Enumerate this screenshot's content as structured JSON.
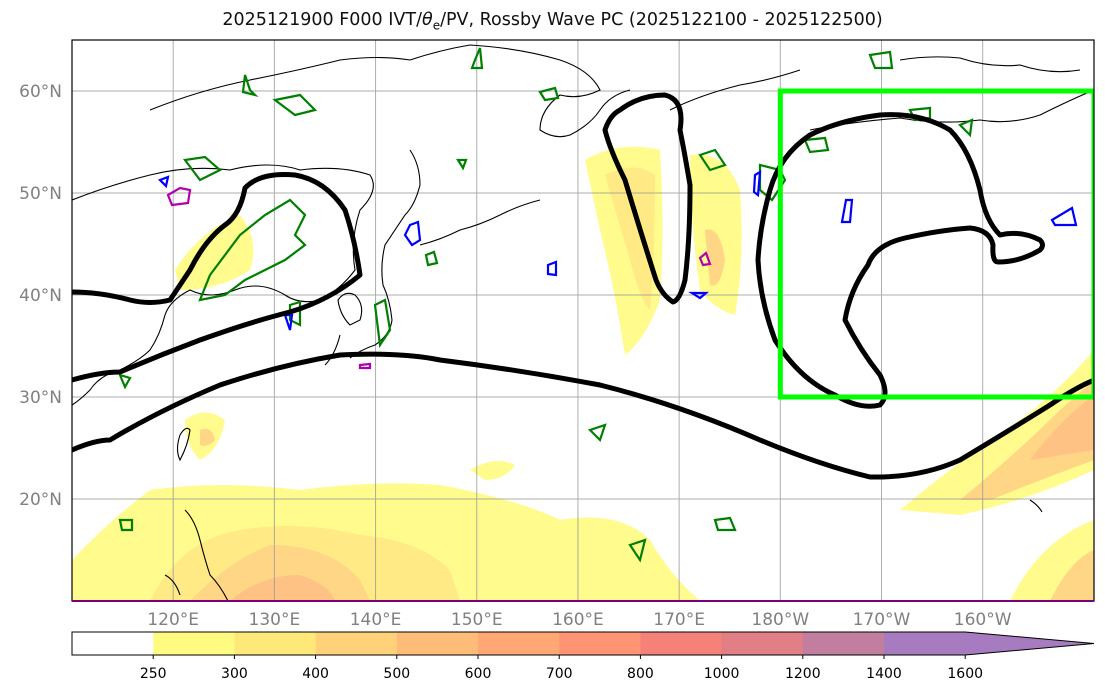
{
  "title": {
    "prefix": "2025121900 F000 IVT/",
    "theta": "θ",
    "theta_sub": "e",
    "suffix": "/PV, Rossby Wave PC (2025122100 - 2025122500)"
  },
  "map": {
    "lon_range": [
      110,
      211
    ],
    "lat_range": [
      10,
      65
    ],
    "lat_ticks": [
      {
        "value": 60,
        "label": "60°N"
      },
      {
        "value": 50,
        "label": "50°N"
      },
      {
        "value": 40,
        "label": "40°N"
      },
      {
        "value": 30,
        "label": "30°N"
      },
      {
        "value": 20,
        "label": "20°N"
      }
    ],
    "lon_ticks": [
      {
        "value": 120,
        "label": "120°E"
      },
      {
        "value": 130,
        "label": "130°E"
      },
      {
        "value": 140,
        "label": "140°E"
      },
      {
        "value": 150,
        "label": "150°E"
      },
      {
        "value": 160,
        "label": "160°E"
      },
      {
        "value": 170,
        "label": "170°E"
      },
      {
        "value": 180,
        "label": "180°W"
      },
      {
        "value": 190,
        "label": "170°W"
      },
      {
        "value": 200,
        "label": "160°W"
      }
    ],
    "gridlines": true,
    "region_box": {
      "lon": [
        180,
        211
      ],
      "lat": [
        30,
        60
      ],
      "color": "#00ff00"
    },
    "colors": {
      "pv_contour": "#000000",
      "theta_high": "#008000",
      "theta_low": "#0000ff",
      "magenta": "#b000b0"
    }
  },
  "colorbar": {
    "levels": [
      250,
      300,
      400,
      500,
      600,
      700,
      800,
      1000,
      1200,
      1400,
      1600
    ],
    "colors": [
      "#ffffff",
      "#fffb80",
      "#ffe87a",
      "#ffd27a",
      "#ffbc78",
      "#ffa876",
      "#ff9474",
      "#f58278",
      "#e27e86",
      "#c27e9e",
      "#a77bc0"
    ]
  }
}
